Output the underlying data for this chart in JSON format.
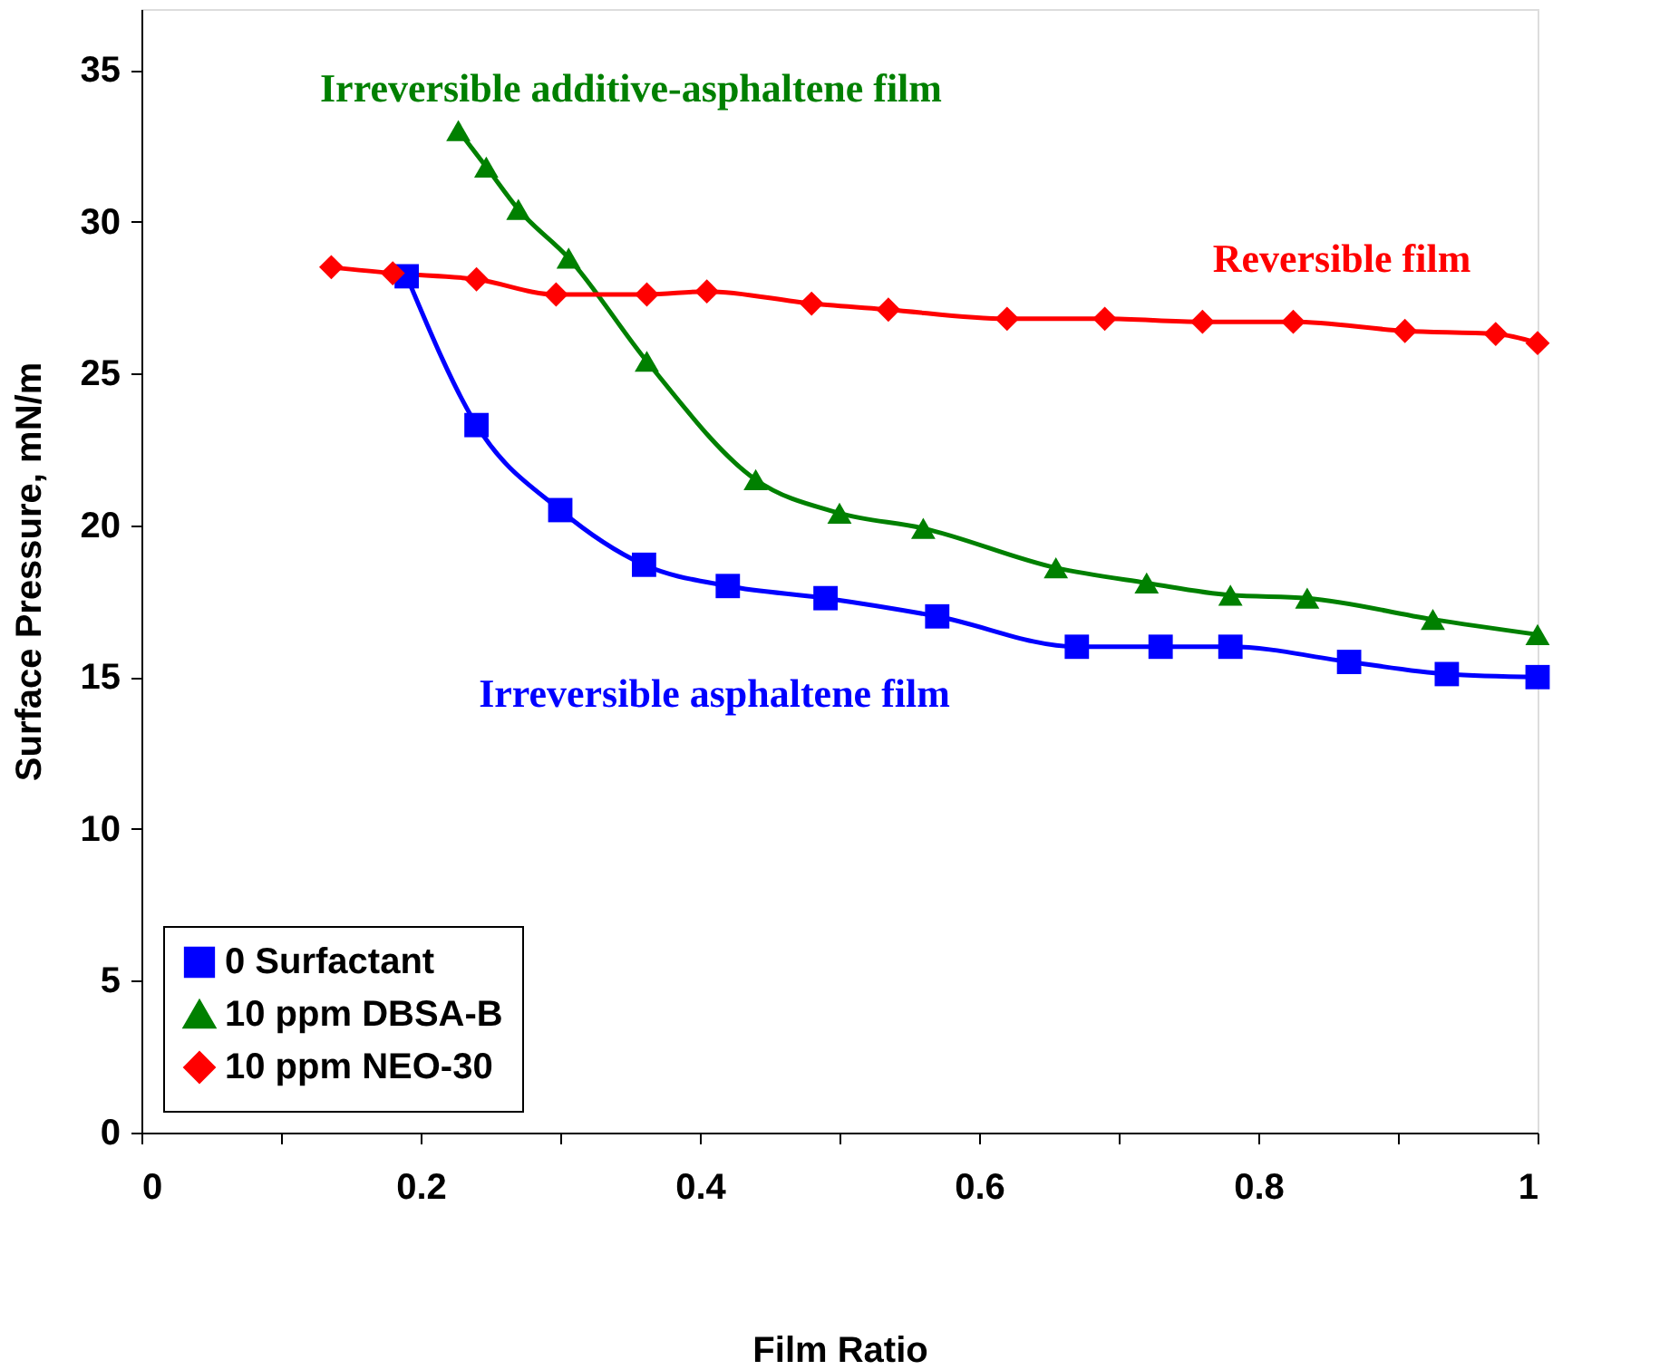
{
  "chart_data": {
    "type": "line",
    "xlabel": "Film Ratio",
    "ylabel": "Surface Pressure, mN/m",
    "xlim": [
      0,
      1
    ],
    "ylim": [
      0,
      37
    ],
    "xticks": [
      0,
      {
        "value": 0.1,
        "label": null
      },
      0.2,
      {
        "value": 0.3,
        "label": null
      },
      0.4,
      {
        "value": 0.5,
        "label": null
      },
      0.6,
      {
        "value": 0.7,
        "label": null
      },
      0.8,
      {
        "value": 0.9,
        "label": null
      },
      1
    ],
    "yticks": [
      0,
      5,
      10,
      15,
      20,
      25,
      30,
      35
    ],
    "grid": false,
    "legend": "bottom left",
    "series": [
      {
        "name": "0 Surfactant",
        "color": "#0000ff",
        "marker": "square",
        "x": [
          0.19,
          0.24,
          0.3,
          0.36,
          0.42,
          0.49,
          0.57,
          0.67,
          0.73,
          0.78,
          0.865,
          0.935,
          1.0
        ],
        "values": [
          28.2,
          23.3,
          20.5,
          18.7,
          18.0,
          17.6,
          17.0,
          16.0,
          16.0,
          16.0,
          15.5,
          15.1,
          15.0
        ]
      },
      {
        "name": "10 ppm DBSA-B",
        "color": "#008000",
        "marker": "triangle",
        "x": [
          0.227,
          0.247,
          0.27,
          0.306,
          0.362,
          0.44,
          0.5,
          0.56,
          0.655,
          0.72,
          0.78,
          0.835,
          0.925,
          1.0
        ],
        "values": [
          33.0,
          31.8,
          30.4,
          28.8,
          25.4,
          21.5,
          20.4,
          19.9,
          18.6,
          18.1,
          17.7,
          17.6,
          16.9,
          16.4
        ]
      },
      {
        "name": "10 ppm NEO-30",
        "color": "#ff0000",
        "marker": "diamond",
        "x": [
          0.136,
          0.18,
          0.24,
          0.297,
          0.362,
          0.405,
          0.48,
          0.535,
          0.62,
          0.69,
          0.76,
          0.825,
          0.905,
          0.97,
          1.0
        ],
        "values": [
          28.5,
          28.3,
          28.1,
          27.6,
          27.6,
          27.7,
          27.3,
          27.1,
          26.8,
          26.8,
          26.7,
          26.7,
          26.4,
          26.3,
          26.0
        ]
      }
    ],
    "annotations": [
      "Irreversible asphaltene film",
      "Irreversible additive-asphaltene film",
      "Reversible film"
    ]
  }
}
